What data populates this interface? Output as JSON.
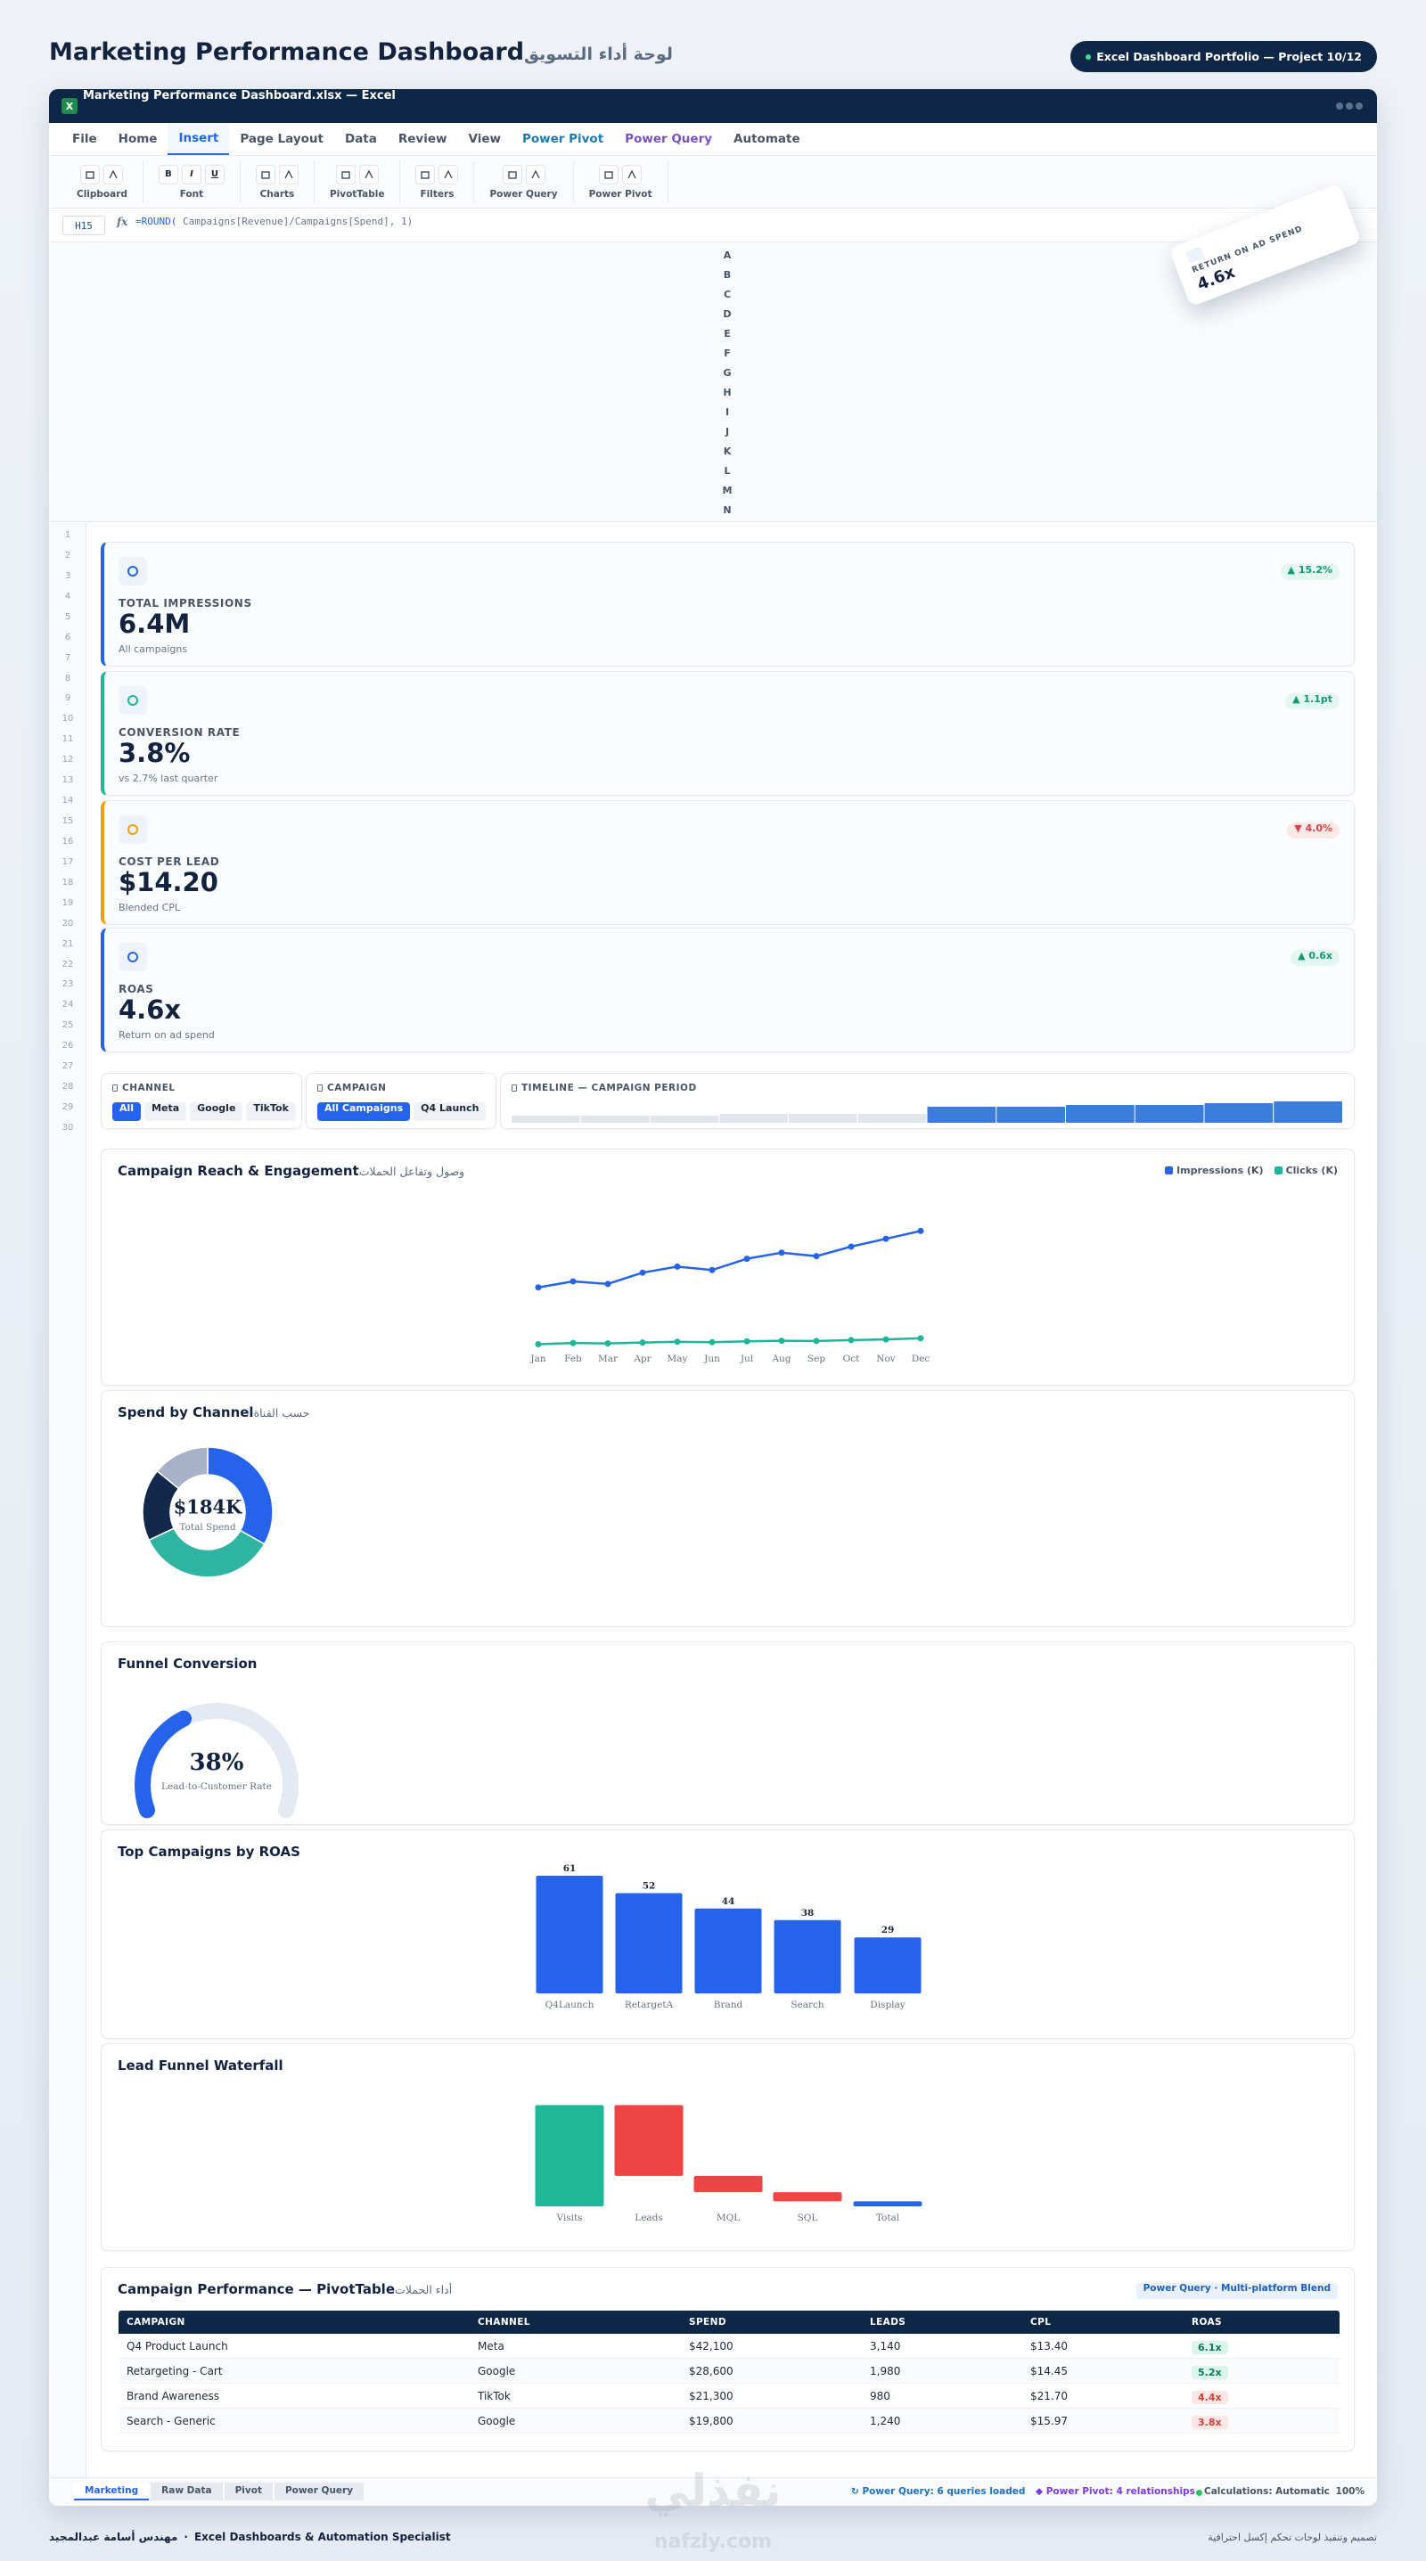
{
  "header": {
    "title": "Marketing Performance Dashboard",
    "subtitle_ar": "لوحة أداء التسويق",
    "badge": "Excel Dashboard Portfolio — Project 10/12"
  },
  "window": {
    "title": "Marketing Performance Dashboard.xlsx — Excel",
    "app_icon": "X"
  },
  "menu": {
    "tabs": [
      {
        "label": "File"
      },
      {
        "label": "Home"
      },
      {
        "label": "Insert"
      },
      {
        "label": "Page Layout"
      },
      {
        "label": "Data"
      },
      {
        "label": "Review"
      },
      {
        "label": "View"
      },
      {
        "label": "Power Pivot",
        "color": "#1a7bb8"
      },
      {
        "label": "Power Query",
        "color": "#7a4fc9"
      },
      {
        "label": "Automate"
      }
    ],
    "active": 2
  },
  "ribbon": {
    "groups": [
      {
        "label": "Clipboard"
      },
      {
        "label": "Font",
        "buttons": [
          "B",
          "I",
          "U"
        ]
      },
      {
        "label": "Charts"
      },
      {
        "label": "PivotTable"
      },
      {
        "label": "Filters"
      },
      {
        "label": "Power Query"
      },
      {
        "label": "Power Pivot"
      }
    ]
  },
  "formula_bar": {
    "cell": "H15",
    "fx": "fx",
    "function": "=ROUND(",
    "arguments": " Campaigns[Revenue]/Campaigns[Spend], 1)"
  },
  "floating_card": {
    "label": "RETURN ON AD SPEND",
    "value": "4.6x"
  },
  "columns": [
    "A",
    "B",
    "C",
    "D",
    "E",
    "F",
    "G",
    "H",
    "I",
    "J",
    "K",
    "L",
    "M",
    "N"
  ],
  "rows": [
    1,
    2,
    3,
    4,
    5,
    6,
    7,
    8,
    9,
    10,
    11,
    12,
    13,
    14,
    15,
    16,
    17,
    18,
    19,
    20,
    21,
    22,
    23,
    24,
    25,
    26,
    27,
    28,
    29,
    30
  ],
  "kpis": [
    {
      "label": "TOTAL IMPRESSIONS",
      "value": "6.4M",
      "note": "All campaigns",
      "change": "▲ 15.2%",
      "trend": "up",
      "color": "#2563eb"
    },
    {
      "label": "CONVERSION RATE",
      "value": "3.8%",
      "note": "vs 2.7% last quarter",
      "change": "▲ 1.1pt",
      "trend": "up",
      "color": "#1fb59a"
    },
    {
      "label": "COST PER LEAD",
      "value": "$14.20",
      "note": "Blended CPL",
      "change": "▼ 4.0%",
      "trend": "down",
      "color": "#f59e0b"
    },
    {
      "label": "ROAS",
      "value": "4.6x",
      "note": "Return on ad spend",
      "change": "▲ 0.6x",
      "trend": "up",
      "color": "#2563eb"
    }
  ],
  "filters": [
    {
      "label": "CHANNEL",
      "options": [
        "All",
        "Meta",
        "Google",
        "TikTok"
      ],
      "selected": 0
    },
    {
      "label": "CAMPAIGN",
      "options": [
        "All Campaigns",
        "Q4 Launch"
      ],
      "selected": 0
    }
  ],
  "chart_data": [
    {
      "type": "line",
      "title": "Campaign Reach & Engagement",
      "subtitle_ar": "وصول وتفاعل الحملات",
      "categories": [
        "Jan",
        "Feb",
        "Mar",
        "Apr",
        "May",
        "Jun",
        "Jul",
        "Aug",
        "Sep",
        "Oct",
        "Nov",
        "Dec"
      ],
      "series": [
        {
          "name": "Impressions (K)",
          "color": "#2563eb",
          "values": [
            355,
            390,
            375,
            440,
            475,
            455,
            520,
            555,
            535,
            590,
            635,
            680
          ]
        },
        {
          "name": "Clicks (K)",
          "color": "#1fb59a",
          "values": [
            28,
            35,
            33,
            38,
            42,
            40,
            45,
            48,
            47,
            52,
            56,
            62
          ]
        }
      ],
      "ylim": [
        0,
        800
      ],
      "legend": "top-right"
    },
    {
      "type": "donut",
      "title": "Spend by Channel",
      "subtitle_ar": "حسب القناة",
      "values": [
        61,
        64,
        33,
        26
      ],
      "colors": [
        "#2563eb",
        "#2fb3a3",
        "#13294b",
        "#a7b2c8"
      ],
      "center_value": "$184K",
      "center_label": "Total Spend"
    },
    {
      "type": "gauge",
      "title": "Funnel Conversion",
      "value": 38,
      "value_label": "38%",
      "caption": "Lead-to-Customer Rate",
      "ylim": [
        0,
        100
      ],
      "color": "#2563eb"
    },
    {
      "type": "bar",
      "title": "Top Campaigns by ROAS",
      "categories": [
        "Q4Launch",
        "RetargetA",
        "Brand",
        "Search",
        "Display"
      ],
      "values": [
        61,
        52,
        44,
        38,
        29
      ],
      "ylim": [
        0,
        70
      ],
      "color": "#2563eb"
    },
    {
      "type": "waterfall",
      "title": "Lead Funnel Waterfall",
      "categories": [
        "Visits",
        "Leads",
        "MQL",
        "SQL",
        "Total"
      ],
      "values": [
        100,
        -70,
        -16,
        -9,
        5
      ],
      "colors": [
        "#1fb99a",
        "#ef4444",
        "#ef4444",
        "#ef4444",
        "#2563eb"
      ],
      "totals": [
        4
      ],
      "ylim": [
        0,
        100
      ]
    },
    {
      "type": "timeline",
      "title": "TIMELINE — CAMPAIGN PERIOD",
      "values": [
        4,
        4,
        4,
        5,
        5,
        5,
        9,
        9,
        10,
        10,
        11,
        12
      ],
      "selected": [
        false,
        false,
        false,
        false,
        false,
        false,
        true,
        true,
        true,
        true,
        true,
        true
      ],
      "color": "#3b7ddd",
      "ylim": [
        0,
        15
      ]
    }
  ],
  "table": {
    "title": "Campaign Performance — PivotTable",
    "subtitle_ar": "أداء الحملات",
    "badge": "Power Query · Multi-platform Blend",
    "columns": [
      "CAMPAIGN",
      "CHANNEL",
      "SPEND",
      "LEADS",
      "CPL",
      "ROAS"
    ],
    "rows": [
      [
        "Q4 Product Launch",
        "Meta",
        "$42,100",
        "3,140",
        "$13.40",
        "6.1x"
      ],
      [
        "Retargeting - Cart",
        "Google",
        "$28,600",
        "1,980",
        "$14.45",
        "5.2x"
      ],
      [
        "Brand Awareness",
        "TikTok",
        "$21,300",
        "980",
        "$21.70",
        "4.4x"
      ],
      [
        "Search - Generic",
        "Google",
        "$19,800",
        "1,240",
        "$15.97",
        "3.8x"
      ]
    ],
    "roas_tone": [
      "good",
      "good",
      "bad",
      "bad"
    ]
  },
  "sheets": {
    "tabs": [
      "Marketing",
      "Raw Data",
      "Pivot",
      "Power Query"
    ],
    "active": 0
  },
  "status": {
    "power_query": "↻ Power Query: 6 queries loaded",
    "power_pivot": "◆ Power Pivot: 4 relationships",
    "calculations": "Calculations: Automatic",
    "zoom": "100%"
  },
  "footer": {
    "author_ar": "مهندس أسامة عبدالمجيد",
    "separator": "·",
    "role": "Excel Dashboards & Automation Specialist",
    "tagline_ar": "تصميم وتنفيذ لوحات تحكم إكسل احترافية"
  },
  "watermark": {
    "brand_ar": "نفذلي",
    "site": "nafzly.com"
  }
}
